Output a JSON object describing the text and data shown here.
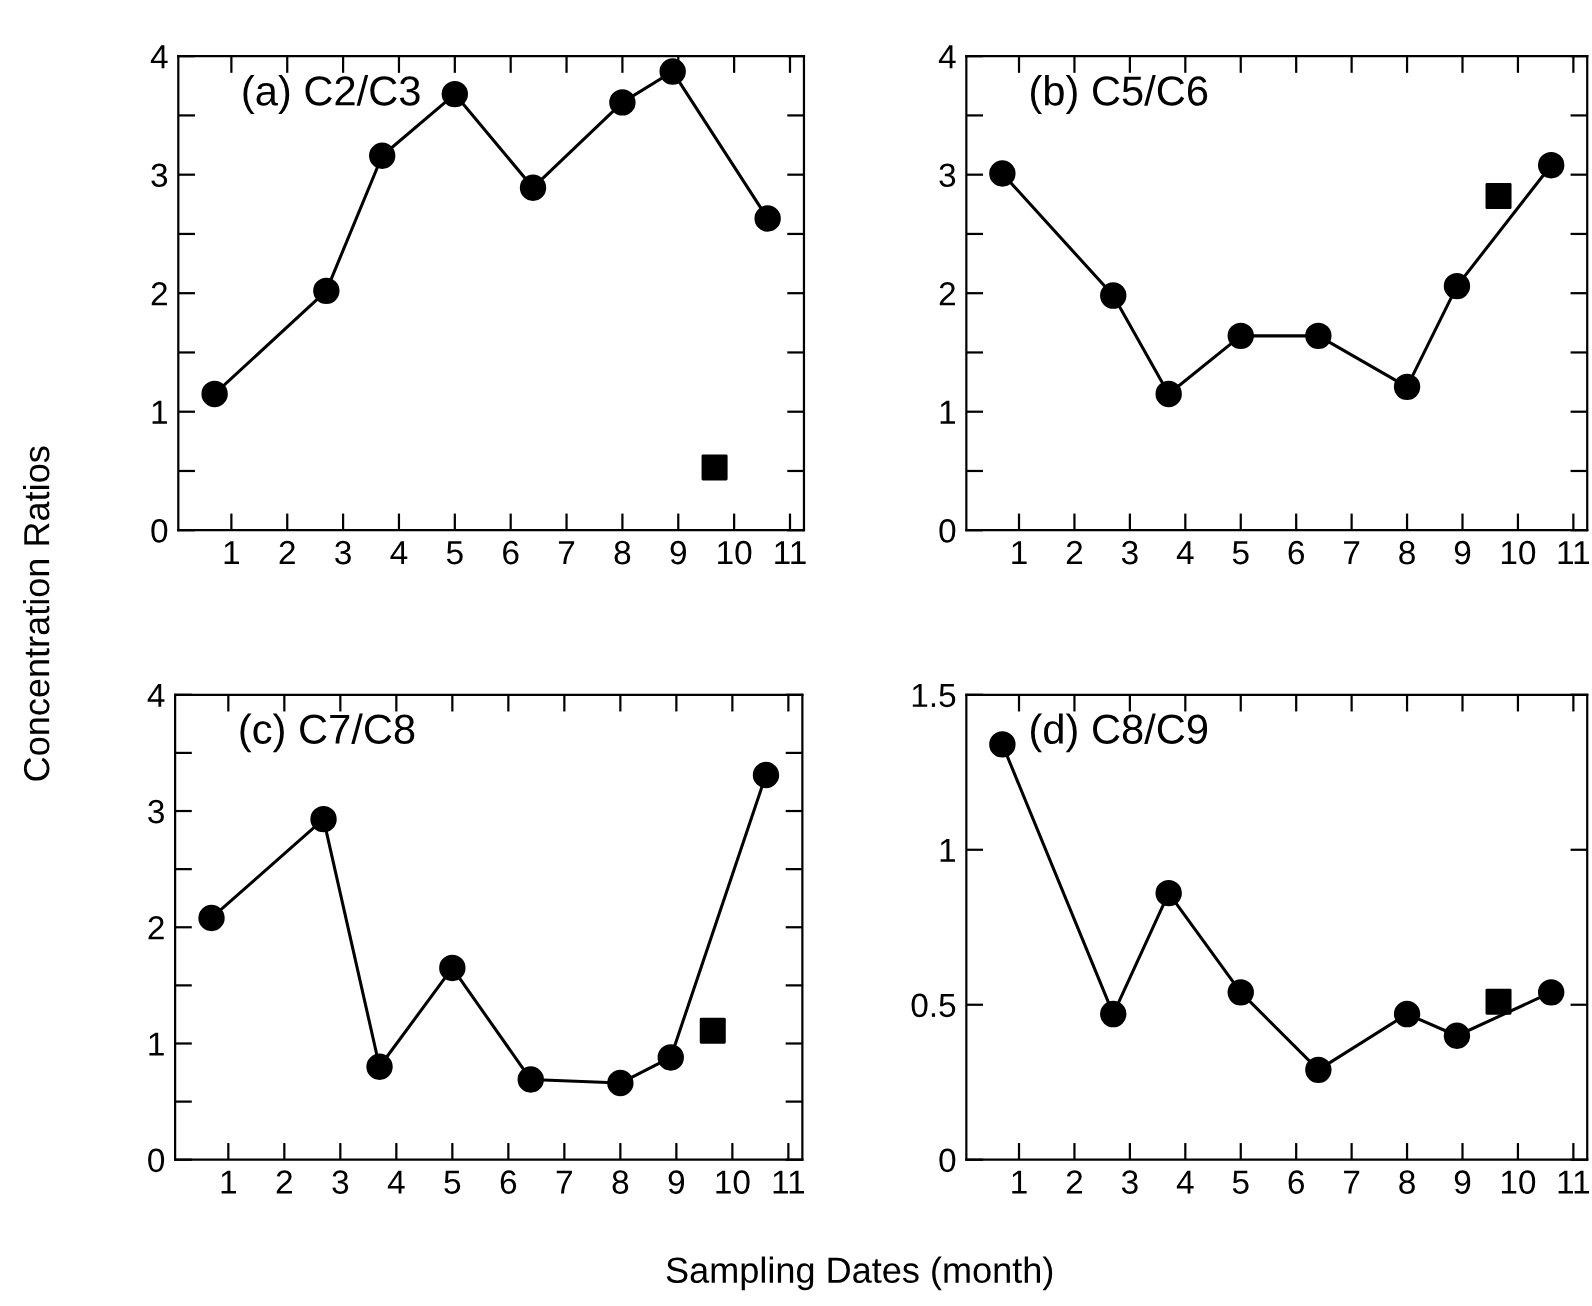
{
  "chart_data": [
    {
      "type": "line",
      "title": "(a) C2/C3",
      "ylabel": "Concentration Ratios",
      "xlim": [
        0.05,
        11.25
      ],
      "xticks": [
        1,
        2,
        3,
        4,
        5,
        6,
        7,
        8,
        9,
        10,
        11
      ],
      "ylim": [
        0,
        4
      ],
      "yticks": [
        0,
        {
          "value": 0.5,
          "label": null
        },
        1,
        {
          "value": 1.5,
          "label": null
        },
        2,
        {
          "value": 2.5,
          "label": null
        },
        3,
        {
          "value": 3.5,
          "label": null
        },
        4
      ],
      "grid": false,
      "legend": false,
      "series": [
        {
          "marker": "circle",
          "color": "#000000",
          "x": [
            0.7,
            2.7,
            3.7,
            5.0,
            6.4,
            8.0,
            8.9,
            10.6
          ],
          "values": [
            1.15,
            2.02,
            3.16,
            3.68,
            2.89,
            3.61,
            3.87,
            2.63
          ]
        },
        {
          "type": "scatter",
          "marker": "square",
          "color": "#000000",
          "x": [
            9.65
          ],
          "values": [
            0.53
          ]
        }
      ]
    },
    {
      "type": "line",
      "title": "(b) C5/C6",
      "xlim": [
        0.05,
        11.25
      ],
      "xticks": [
        1,
        2,
        3,
        4,
        5,
        6,
        7,
        8,
        9,
        10,
        11
      ],
      "ylim": [
        0,
        4
      ],
      "yticks": [
        0,
        {
          "value": 0.5,
          "label": null
        },
        1,
        {
          "value": 1.5,
          "label": null
        },
        2,
        {
          "value": 2.5,
          "label": null
        },
        3,
        {
          "value": 3.5,
          "label": null
        },
        4
      ],
      "grid": false,
      "legend": false,
      "series": [
        {
          "marker": "circle",
          "color": "#000000",
          "x": [
            0.7,
            2.7,
            3.7,
            5.0,
            6.4,
            8.0,
            8.9,
            10.6
          ],
          "values": [
            3.01,
            1.98,
            1.15,
            1.64,
            1.64,
            1.21,
            2.06,
            3.08
          ]
        },
        {
          "type": "scatter",
          "marker": "square",
          "color": "#000000",
          "x": [
            9.65
          ],
          "values": [
            2.82
          ]
        }
      ]
    },
    {
      "type": "line",
      "title": "(c) C7/C8",
      "xlabel": "Sampling Dates (month)",
      "xlim": [
        0.05,
        11.25
      ],
      "xticks": [
        1,
        2,
        3,
        4,
        5,
        6,
        7,
        8,
        9,
        10,
        11
      ],
      "ylim": [
        0,
        4
      ],
      "yticks": [
        0,
        {
          "value": 0.5,
          "label": null
        },
        1,
        {
          "value": 1.5,
          "label": null
        },
        2,
        {
          "value": 2.5,
          "label": null
        },
        3,
        {
          "value": 3.5,
          "label": null
        },
        4
      ],
      "grid": false,
      "legend": false,
      "series": [
        {
          "marker": "circle",
          "color": "#000000",
          "x": [
            0.7,
            2.7,
            3.7,
            5.0,
            6.4,
            8.0,
            8.9,
            10.6
          ],
          "values": [
            2.08,
            2.93,
            0.8,
            1.65,
            0.69,
            0.66,
            0.88,
            3.31
          ]
        },
        {
          "type": "scatter",
          "marker": "square",
          "color": "#000000",
          "x": [
            9.65
          ],
          "values": [
            1.11
          ]
        }
      ]
    },
    {
      "type": "line",
      "title": "(d) C8/C9",
      "xlim": [
        0.05,
        11.25
      ],
      "xticks": [
        1,
        2,
        3,
        4,
        5,
        6,
        7,
        8,
        9,
        10,
        11
      ],
      "ylim": [
        0,
        1.5
      ],
      "yticks": [
        0,
        0.5,
        1,
        1.5
      ],
      "grid": false,
      "legend": false,
      "series": [
        {
          "marker": "circle",
          "color": "#000000",
          "x": [
            0.7,
            2.7,
            3.7,
            5.0,
            6.4,
            8.0,
            8.9,
            10.6
          ],
          "values": [
            1.34,
            0.47,
            0.86,
            0.54,
            0.29,
            0.47,
            0.4,
            0.54
          ]
        },
        {
          "type": "scatter",
          "marker": "square",
          "color": "#000000",
          "x": [
            9.65
          ],
          "values": [
            0.51
          ]
        }
      ]
    }
  ]
}
